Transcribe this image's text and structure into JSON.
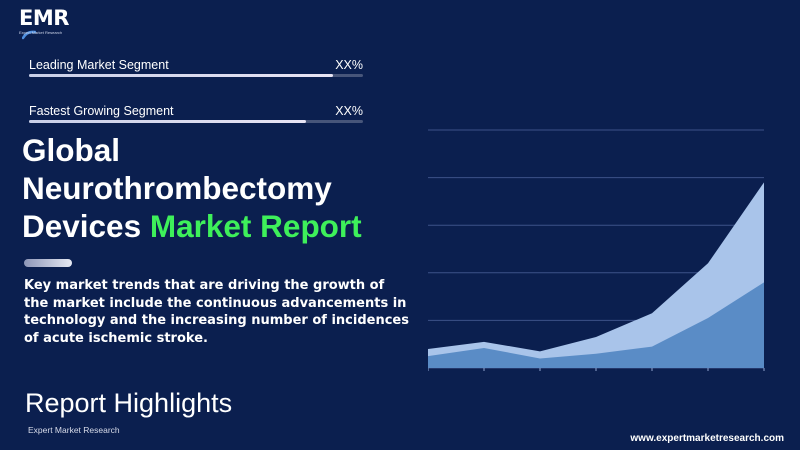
{
  "logo": {
    "text": "EMR",
    "subtext": "Expert Market Research"
  },
  "segments": [
    {
      "label": "Leading Market Segment",
      "value": "XX%",
      "level": 0.91
    },
    {
      "label": "Fastest Growing Segment",
      "value": "XX%",
      "level": 0.83
    }
  ],
  "title": {
    "line1": "Global",
    "line2": "Neurothrombectomy",
    "line3_plain": "Devices",
    "line3_accent": "Market Report"
  },
  "description": "Key market trends that are driving the growth of the market include the continuous advancements in technology and the increasing number of incidences of acute ischemic stroke.",
  "highlights": "Report Highlights",
  "brand_small": "Expert Market Research",
  "website": "www.expertmarketresearch.com",
  "colors": {
    "background": "#0b1f4f",
    "accent_green": "#3ef05a",
    "area_light": "#a9c4ea",
    "area_dark": "#5a8cc6"
  },
  "chart_data": {
    "type": "area",
    "title": "",
    "xlabel": "",
    "ylabel": "",
    "x": [
      1,
      2,
      3,
      4,
      5,
      6,
      7
    ],
    "ylim": [
      0,
      5
    ],
    "grid": true,
    "series": [
      {
        "values": [
          0.4,
          0.55,
          0.35,
          0.65,
          1.15,
          2.2,
          3.9
        ]
      },
      {
        "values": [
          0.25,
          0.42,
          0.2,
          0.3,
          0.45,
          1.05,
          1.8
        ]
      }
    ]
  }
}
